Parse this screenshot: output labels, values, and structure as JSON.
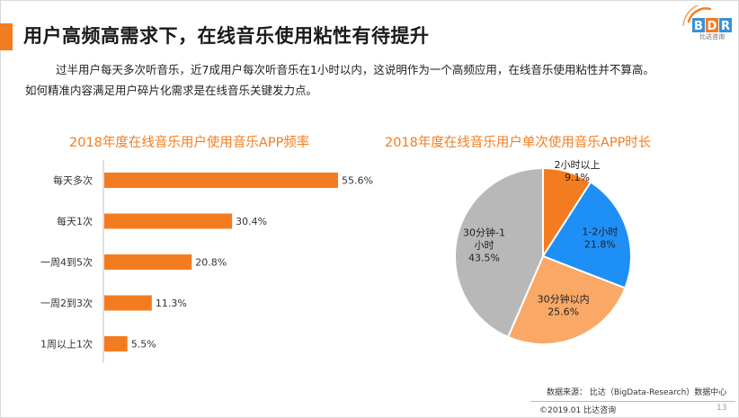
{
  "slide": {
    "title": "用户高频高需求下，在线音乐使用粘性有待提升",
    "description_line1": "过半用户每天多次听音乐，近7成用户每次听音乐在1小时以内，这说明作为一个高频应用，在线音乐使用粘性并不算高。",
    "description_line2": "如何精准内容满足用户碎片化需求是在线音乐关键发力点。",
    "logo_text": "BDR",
    "logo_subtext": "比达咨询",
    "source": "数据来源： 比达（BigData-Research）数据中心",
    "copyright": "©2019.01 比达咨询",
    "page_number": "13",
    "accent_color": "#f47c20"
  },
  "chart_data": [
    {
      "type": "bar",
      "orientation": "horizontal",
      "title": "2018年度在线音乐用户使用音乐APP频率",
      "categories": [
        "每天多次",
        "每天1次",
        "一周4到5次",
        "一周2到3次",
        "1周以上1次"
      ],
      "values": [
        55.6,
        30.4,
        20.8,
        11.3,
        5.5
      ],
      "value_labels": [
        "55.6%",
        "30.4%",
        "20.8%",
        "11.3%",
        "5.5%"
      ],
      "color": "#f47c20",
      "grid": false,
      "legend": "none"
    },
    {
      "type": "pie",
      "title": "2018年度在线音乐用户单次使用音乐APP时长",
      "slices": [
        {
          "name": "2小时以上",
          "value": 9.1,
          "label": "9.1%",
          "color": "#f47c20"
        },
        {
          "name": "1-2小时",
          "value": 21.8,
          "label": "21.8%",
          "color": "#1e8ff7"
        },
        {
          "name": "30分钟以内",
          "value": 25.6,
          "label": "25.6%",
          "color": "#f9a866"
        },
        {
          "name": "30分钟-1小时",
          "value": 43.5,
          "label": "43.5%",
          "color": "#b8b8b8"
        }
      ],
      "legend": "none"
    }
  ]
}
